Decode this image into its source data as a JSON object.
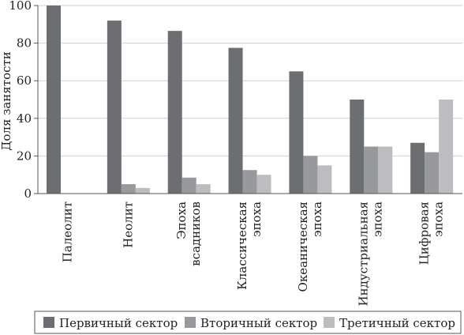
{
  "chart_data": {
    "type": "bar",
    "title": "",
    "xlabel": "",
    "ylabel": "Доля занятости",
    "ylim": [
      0,
      100
    ],
    "yticks": [
      0,
      20,
      40,
      60,
      80,
      100
    ],
    "grid": "horizontal",
    "legend_placement": "bottom",
    "categories": [
      [
        "Палеолит"
      ],
      [
        "Неолит"
      ],
      [
        "Эпоха",
        "всадников"
      ],
      [
        "Классическая",
        "эпоха"
      ],
      [
        "Океаническая",
        "эпоха"
      ],
      [
        "Индустриальная",
        "эпоха"
      ],
      [
        "Цифровая",
        "эпоха"
      ]
    ],
    "series": [
      {
        "name": "Первичный сектор",
        "color": "#6d6e71",
        "values": [
          100,
          92,
          86.5,
          77.5,
          65,
          50,
          27
        ]
      },
      {
        "name": "Вторичный сектор",
        "color": "#98999c",
        "values": [
          0,
          5,
          8.5,
          12.5,
          20,
          25,
          22
        ]
      },
      {
        "name": "Третичный сектор",
        "color": "#bdbdbf",
        "values": [
          0,
          3,
          5,
          10,
          15,
          25,
          50
        ]
      }
    ]
  }
}
